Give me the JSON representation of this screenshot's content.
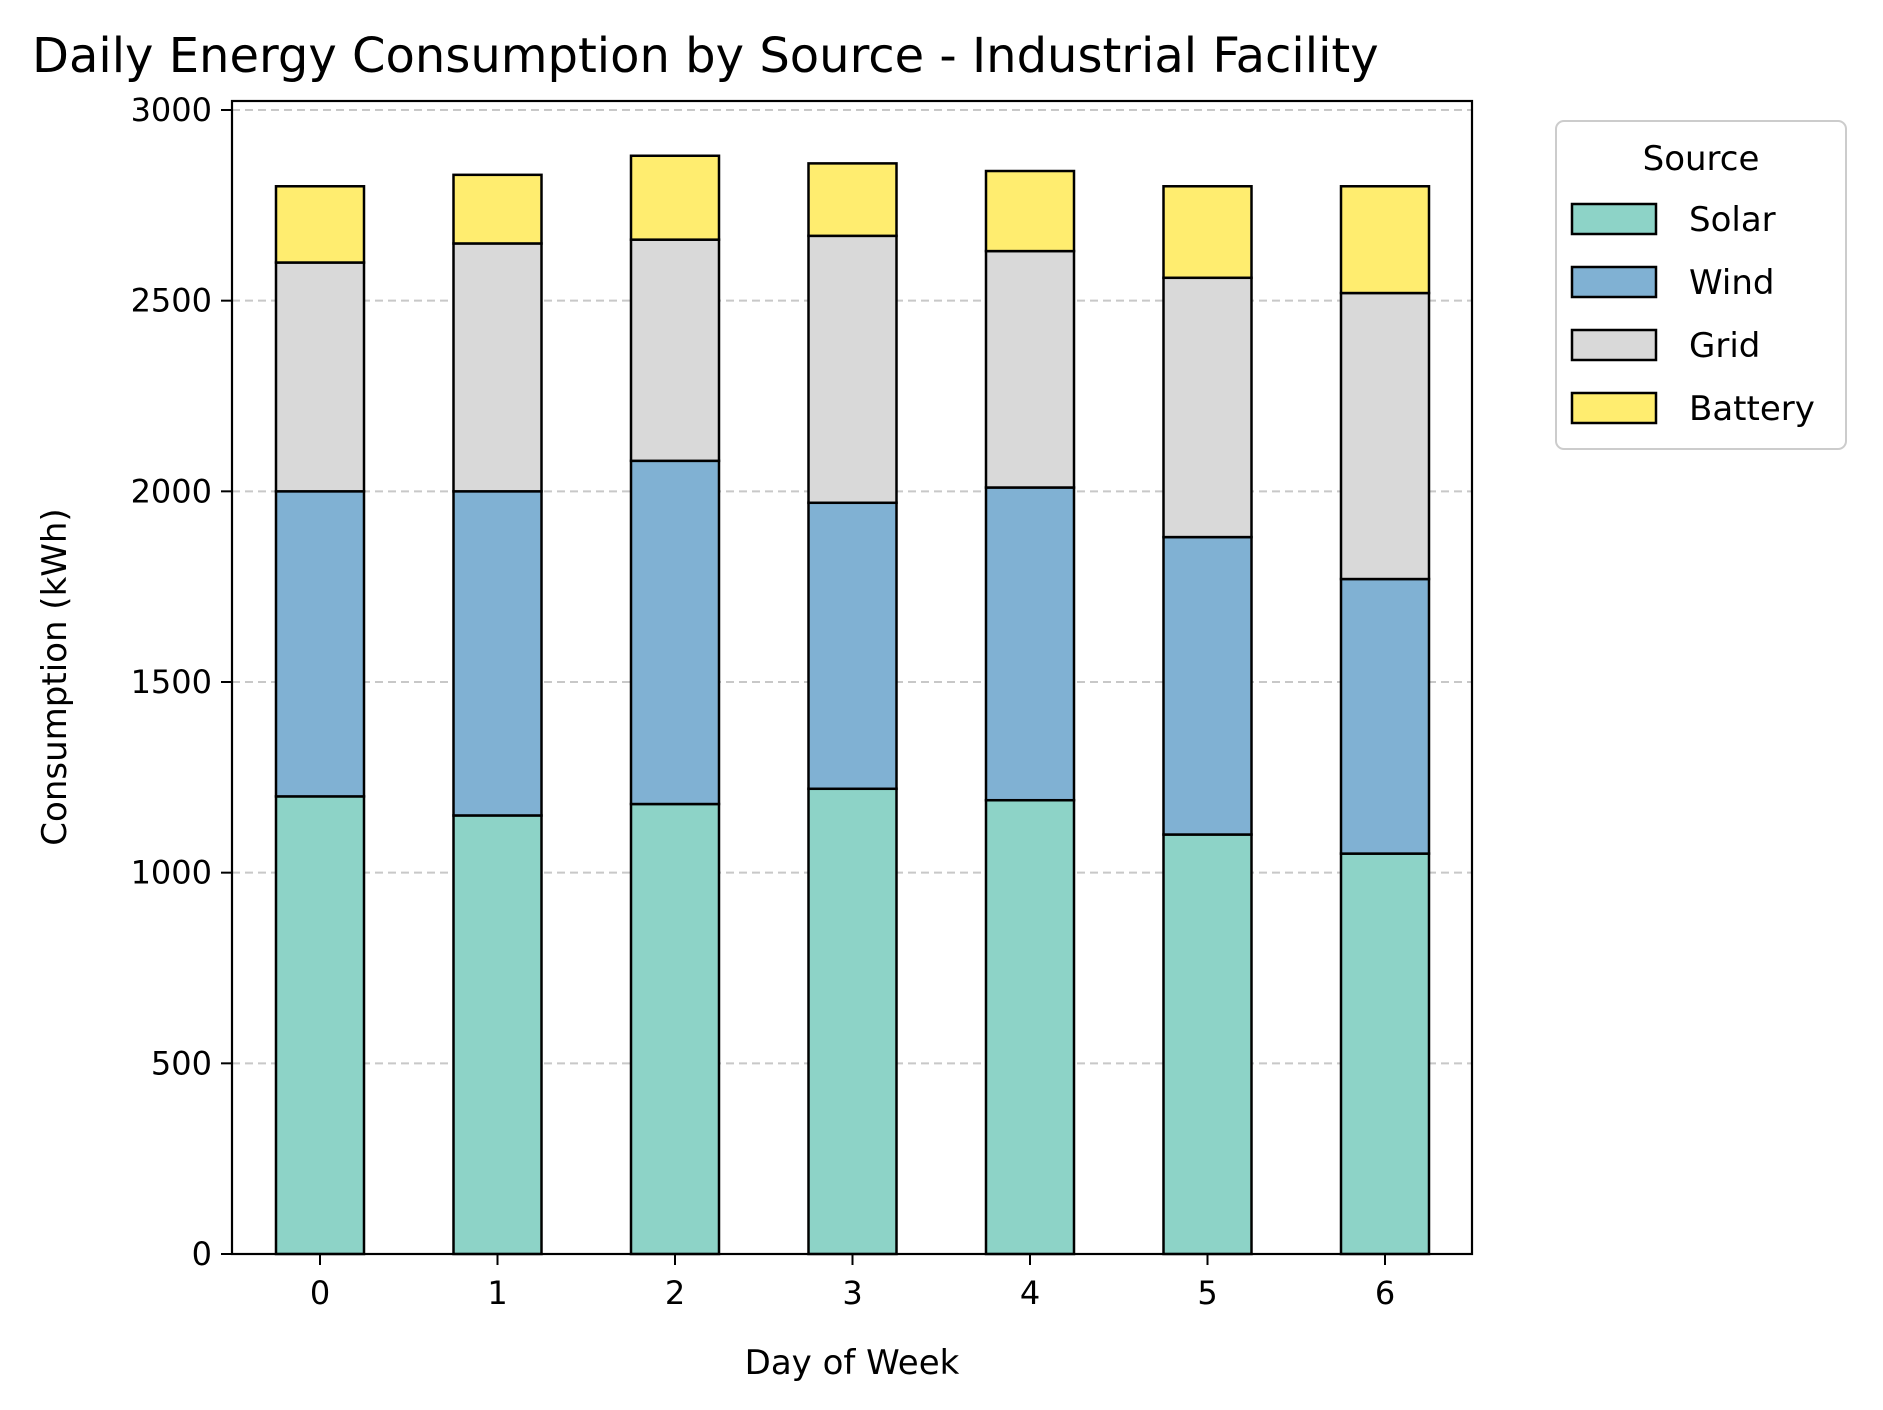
{
  "chart_data": {
    "type": "bar",
    "stacked": true,
    "title": "Daily Energy Consumption by Source - Industrial Facility",
    "xlabel": "Day of Week",
    "ylabel": "Consumption (kWh)",
    "categories": [
      "0",
      "1",
      "2",
      "3",
      "4",
      "5",
      "6"
    ],
    "ylim": [
      0,
      3000
    ],
    "yticks": [
      0,
      500,
      1000,
      1500,
      2000,
      2500,
      3000
    ],
    "grid": "y-dashed",
    "legend": {
      "title": "Source",
      "placement": "outside-top-right"
    },
    "series": [
      {
        "name": "Solar",
        "color": "#8dd3c7",
        "values": [
          1200,
          1150,
          1180,
          1220,
          1190,
          1100,
          1050
        ]
      },
      {
        "name": "Wind",
        "color": "#80b1d3",
        "values": [
          800,
          850,
          900,
          750,
          820,
          780,
          720
        ]
      },
      {
        "name": "Grid",
        "color": "#d9d9d9",
        "values": [
          600,
          650,
          580,
          700,
          620,
          680,
          750
        ]
      },
      {
        "name": "Battery",
        "color": "#ffed6f",
        "values": [
          200,
          180,
          220,
          190,
          210,
          240,
          280
        ]
      }
    ]
  }
}
